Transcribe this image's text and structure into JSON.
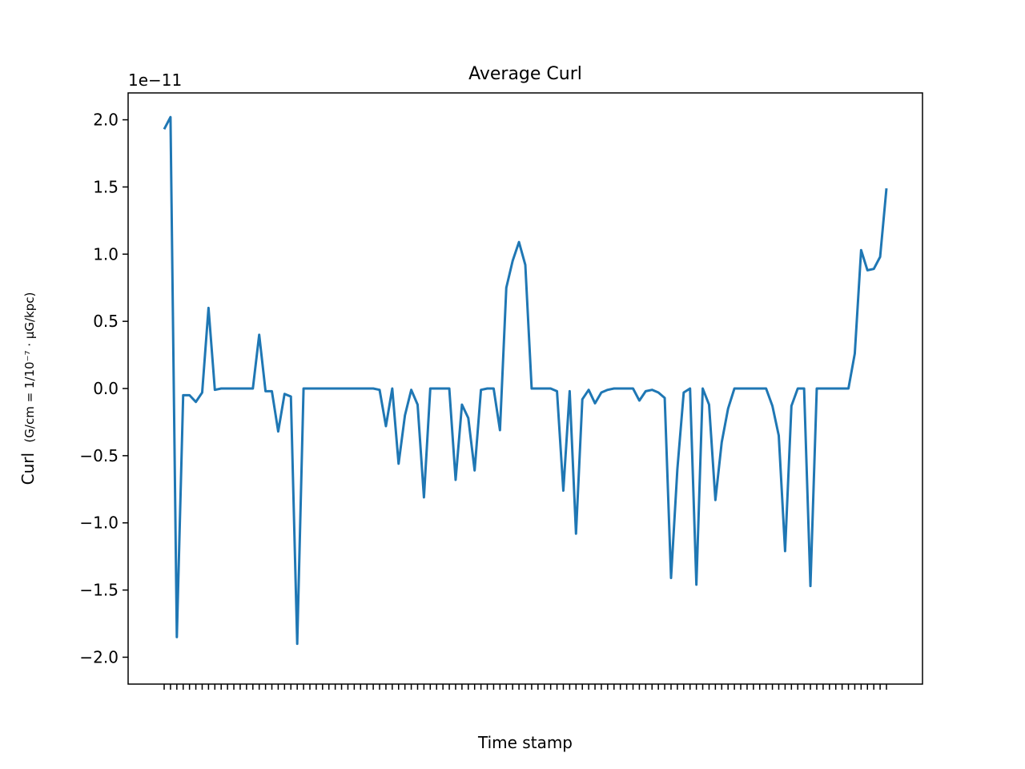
{
  "chart_data": {
    "type": "line",
    "title": "Average Curl",
    "xlabel": "Time stamp",
    "ylabel": "Curl",
    "ylabel_unit": "(G/cm = 1/10⁻⁷ · μG/kpc)",
    "scale_label": "1e−11",
    "scale_factor": 1e-11,
    "ylim": [
      -2.2,
      2.2
    ],
    "yticks": [
      2.0,
      1.5,
      1.0,
      0.5,
      0.0,
      -0.5,
      -1.0,
      -1.5,
      -2.0
    ],
    "ytick_labels": [
      "2.0",
      "1.5",
      "1.0",
      "0.5",
      "0.0",
      "−0.5",
      "−1.0",
      "−1.5",
      "−2.0"
    ],
    "grid": false,
    "legend": false,
    "x_tick_label_note": "x tick labels are overlapping and illegible",
    "series": [
      {
        "color": "#1f77b4",
        "values": [
          1.93,
          2.02,
          -1.85,
          -0.05,
          -0.05,
          -0.1,
          -0.03,
          0.6,
          -0.01,
          0.0,
          0.0,
          0.0,
          0.0,
          0.0,
          0.0,
          0.4,
          -0.02,
          -0.02,
          -0.32,
          -0.04,
          -0.06,
          -1.9,
          0.0,
          0.0,
          0.0,
          0.0,
          0.0,
          0.0,
          0.0,
          0.0,
          0.0,
          0.0,
          0.0,
          0.0,
          -0.01,
          -0.28,
          0.0,
          -0.56,
          -0.2,
          -0.01,
          -0.12,
          -0.81,
          0.0,
          0.0,
          0.0,
          0.0,
          -0.68,
          -0.12,
          -0.22,
          -0.61,
          -0.01,
          0.0,
          0.0,
          -0.31,
          0.75,
          0.95,
          1.09,
          0.92,
          0.0,
          0.0,
          0.0,
          0.0,
          -0.02,
          -0.76,
          -0.02,
          -1.08,
          -0.08,
          -0.01,
          -0.11,
          -0.03,
          -0.01,
          0.0,
          0.0,
          0.0,
          0.0,
          -0.09,
          -0.02,
          -0.01,
          -0.03,
          -0.07,
          -1.41,
          -0.6,
          -0.03,
          0.0,
          -1.46,
          0.0,
          -0.12,
          -0.83,
          -0.4,
          -0.15,
          0.0,
          0.0,
          0.0,
          0.0,
          0.0,
          0.0,
          -0.13,
          -0.35,
          -1.21,
          -0.13,
          0.0,
          0.0,
          -1.47,
          0.0,
          0.0,
          0.0,
          0.0,
          0.0,
          0.0,
          0.26,
          1.03,
          0.88,
          0.89,
          0.98,
          1.49
        ]
      }
    ]
  }
}
